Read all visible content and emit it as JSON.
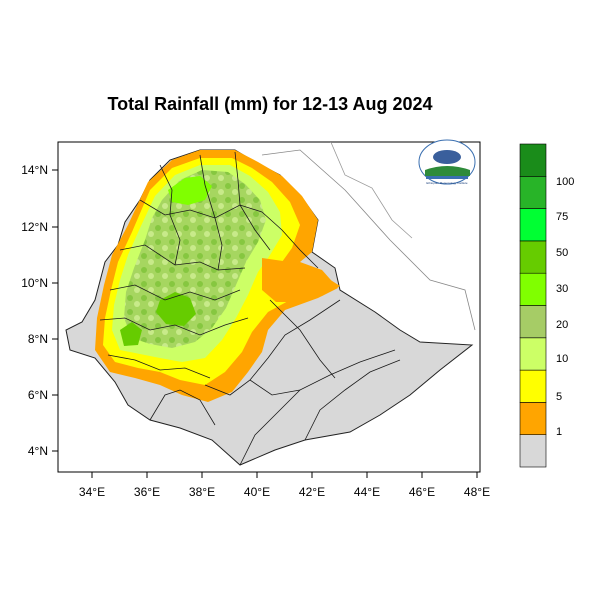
{
  "map": {
    "title": "Total Rainfall (mm) for 12-13 Aug 2024",
    "x_ticks": [
      "34°E",
      "36°E",
      "38°E",
      "40°E",
      "42°E",
      "44°E",
      "46°E",
      "48°E"
    ],
    "y_ticks": [
      "14°N",
      "12°N",
      "10°N",
      "8°N",
      "6°N",
      "4°N"
    ]
  },
  "colorbar": {
    "labels": [
      "1",
      "5",
      "10",
      "20",
      "30",
      "50",
      "75",
      "100"
    ],
    "colors": [
      "#d8d8d8",
      "#ffa500",
      "#ffff00",
      "#ccff66",
      "#a6cc66",
      "#80ff00",
      "#66cc00",
      "#00ff33",
      "#28b428",
      "#1a8c1a"
    ]
  },
  "logo": {
    "caption": "Ethiopian Meteorology Institute"
  }
}
